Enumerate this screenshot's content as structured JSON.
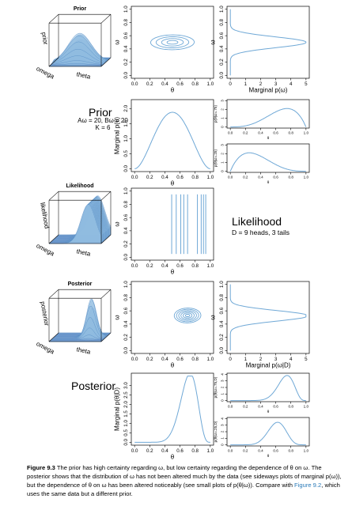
{
  "axis_text": {
    "theta": "θ",
    "omega": "ω",
    "marginal_p_omega": "Marginal p(ω)",
    "marginal_p_theta": "Marginal p(θ)",
    "marginal_p_omega_given_D": "Marginal p(ω|D)",
    "marginal_p_theta_given_D": "Marginal p(θ|D)",
    "p_theta_given_omega_075": "p(θ|ω=.75)",
    "p_theta_given_omega_025": "p(θ|ω=.25)",
    "p_theta_given_omega_075_D": "p(θ|ω=.75,D)",
    "p_theta_given_omega_025_D": "p(θ|ω=.25,D)"
  },
  "persp": {
    "prior": {
      "title": "Prior",
      "z": "prior",
      "x": "theta",
      "y": "omega"
    },
    "likelihood": {
      "title": "Likelihood",
      "z": "likelihood",
      "x": "theta",
      "y": "omega"
    },
    "posterior": {
      "title": "Posterior",
      "z": "posterior",
      "x": "theta",
      "y": "omega"
    }
  },
  "labels": {
    "prior_heading": "Prior",
    "prior_params_line1": "Aω = 20, Bω = 20",
    "prior_params_line2": "K = 6",
    "likelihood_heading": "Likelihood",
    "likelihood_data": "D = 9 heads, 3 tails",
    "posterior_heading": "Posterior"
  },
  "caption": {
    "figure_label": "Figure 9.3",
    "text_part1": "The prior has high certainty regarding ω, but low certainty regarding the dependence of θ on ω. The posterior shows that the distribution of ω has not been altered much by the data (see sideways plots of marginal p(ω)), but the dependence of θ on ω has been altered noticeably (see small plots of p(θ|ω)). Compare with",
    "link_text": "Figure 9.2",
    "text_part2": ", which uses the same data but a different prior."
  },
  "chart_data": [
    {
      "id": "prior_contour",
      "type": "contour",
      "xlabel": "θ",
      "ylabel": "ω",
      "xlim": [
        0,
        1
      ],
      "ylim": [
        0,
        1
      ],
      "x_ticks": [
        0.0,
        0.2,
        0.4,
        0.6,
        0.8,
        1.0
      ],
      "y_ticks": [
        0.0,
        0.2,
        0.4,
        0.6,
        0.8,
        1.0
      ],
      "center": [
        0.5,
        0.5
      ],
      "sd": [
        0.18,
        0.07
      ],
      "rho": 0.2,
      "levels": 4
    },
    {
      "id": "prior_marginal_omega",
      "type": "line",
      "orientation": "sideways",
      "xlabel": "Marginal p(ω)",
      "ylabel": "ω",
      "xlim": [
        0,
        5
      ],
      "ylim": [
        0,
        1
      ],
      "x_ticks": [
        0,
        1,
        2,
        3,
        4,
        5
      ],
      "y_ticks": [
        0.0,
        0.2,
        0.4,
        0.6,
        0.8,
        1.0
      ],
      "dist": {
        "kind": "beta",
        "a": 20,
        "b": 20
      }
    },
    {
      "id": "prior_marginal_theta",
      "type": "line",
      "xlabel": "θ",
      "ylabel": "Marginal p(θ)",
      "xlim": [
        0,
        1
      ],
      "ylim": [
        0,
        2.2
      ],
      "x_ticks": [
        0.0,
        0.2,
        0.4,
        0.6,
        0.8,
        1.0
      ],
      "y_ticks": [
        0.0,
        0.5,
        1.0,
        1.5,
        2.0
      ],
      "dist": {
        "kind": "beta",
        "a": 3,
        "b": 3
      }
    },
    {
      "id": "prior_cond_075",
      "type": "line",
      "xlabel": "θ",
      "ylabel": "p(θ|ω=.75)",
      "xlim": [
        0,
        1
      ],
      "ylim": [
        0,
        3
      ],
      "x_ticks": [
        0.0,
        0.2,
        0.4,
        0.6,
        0.8,
        1.0
      ],
      "y_ticks": [
        0,
        1,
        2,
        3
      ],
      "dist": {
        "kind": "beta",
        "a": 4,
        "b": 2
      }
    },
    {
      "id": "prior_cond_025",
      "type": "line",
      "xlabel": "θ",
      "ylabel": "p(θ|ω=.25)",
      "xlim": [
        0,
        1
      ],
      "ylim": [
        0,
        3
      ],
      "x_ticks": [
        0.0,
        0.2,
        0.4,
        0.6,
        0.8,
        1.0
      ],
      "y_ticks": [
        0,
        1,
        2,
        3
      ],
      "dist": {
        "kind": "beta",
        "a": 2,
        "b": 4
      }
    },
    {
      "id": "likelihood_contour",
      "type": "vlines",
      "xlabel": "θ",
      "ylabel": "ω",
      "xlim": [
        0,
        1
      ],
      "ylim": [
        0,
        1
      ],
      "x_ticks": [
        0.0,
        0.2,
        0.4,
        0.6,
        0.8,
        1.0
      ],
      "y_ticks": [
        0.0,
        0.2,
        0.4,
        0.6,
        0.8,
        1.0
      ],
      "x_values": [
        0.49,
        0.55,
        0.61,
        0.65,
        0.7,
        0.83,
        0.88,
        0.91,
        0.94
      ]
    },
    {
      "id": "posterior_contour",
      "type": "contour",
      "xlabel": "θ",
      "ylabel": "ω",
      "xlim": [
        0,
        1
      ],
      "ylim": [
        0,
        1
      ],
      "x_ticks": [
        0.0,
        0.2,
        0.4,
        0.6,
        0.8,
        1.0
      ],
      "y_ticks": [
        0.0,
        0.2,
        0.4,
        0.6,
        0.8,
        1.0
      ],
      "center": [
        0.7,
        0.53
      ],
      "sd": [
        0.11,
        0.07
      ],
      "rho": 0.15,
      "levels": 6
    },
    {
      "id": "posterior_marginal_omega",
      "type": "line",
      "orientation": "sideways",
      "xlabel": "Marginal p(ω|D)",
      "ylabel": "ω",
      "xlim": [
        0,
        5
      ],
      "ylim": [
        0,
        1
      ],
      "x_ticks": [
        0,
        1,
        2,
        3,
        4,
        5
      ],
      "y_ticks": [
        0.0,
        0.2,
        0.4,
        0.6,
        0.8,
        1.0
      ],
      "dist": {
        "kind": "beta",
        "a": 22,
        "b": 20
      }
    },
    {
      "id": "posterior_marginal_theta",
      "type": "line",
      "xlabel": "θ",
      "ylabel": "Marginal p(θ|D)",
      "xlim": [
        0,
        1
      ],
      "ylim": [
        0,
        3.5
      ],
      "x_ticks": [
        0.0,
        0.2,
        0.4,
        0.6,
        0.8,
        1.0
      ],
      "y_ticks": [
        0.0,
        0.5,
        1.0,
        1.5,
        2.0,
        2.5,
        3.0
      ],
      "dist": {
        "kind": "beta",
        "a": 12,
        "b": 5
      }
    },
    {
      "id": "posterior_cond_075",
      "type": "line",
      "xlabel": "θ",
      "ylabel": "p(θ|ω=.75,D)",
      "xlim": [
        0,
        1
      ],
      "ylim": [
        0,
        4
      ],
      "x_ticks": [
        0.0,
        0.2,
        0.4,
        0.6,
        0.8,
        1.0
      ],
      "y_ticks": [
        0,
        1,
        2,
        3,
        4
      ],
      "dist": {
        "kind": "beta",
        "a": 13,
        "b": 5
      }
    },
    {
      "id": "posterior_cond_025",
      "type": "line",
      "xlabel": "θ",
      "ylabel": "p(θ|ω=.25,D)",
      "xlim": [
        0,
        1
      ],
      "ylim": [
        0,
        4
      ],
      "x_ticks": [
        0.0,
        0.2,
        0.4,
        0.6,
        0.8,
        1.0
      ],
      "y_ticks": [
        0,
        1,
        2,
        3,
        4
      ],
      "dist": {
        "kind": "beta",
        "a": 11,
        "b": 7
      }
    }
  ],
  "colors": {
    "curve": "#6fa8d6",
    "surface": "#8fbbe0",
    "surface_base": "#3b5fc4",
    "frame": "#000000"
  }
}
